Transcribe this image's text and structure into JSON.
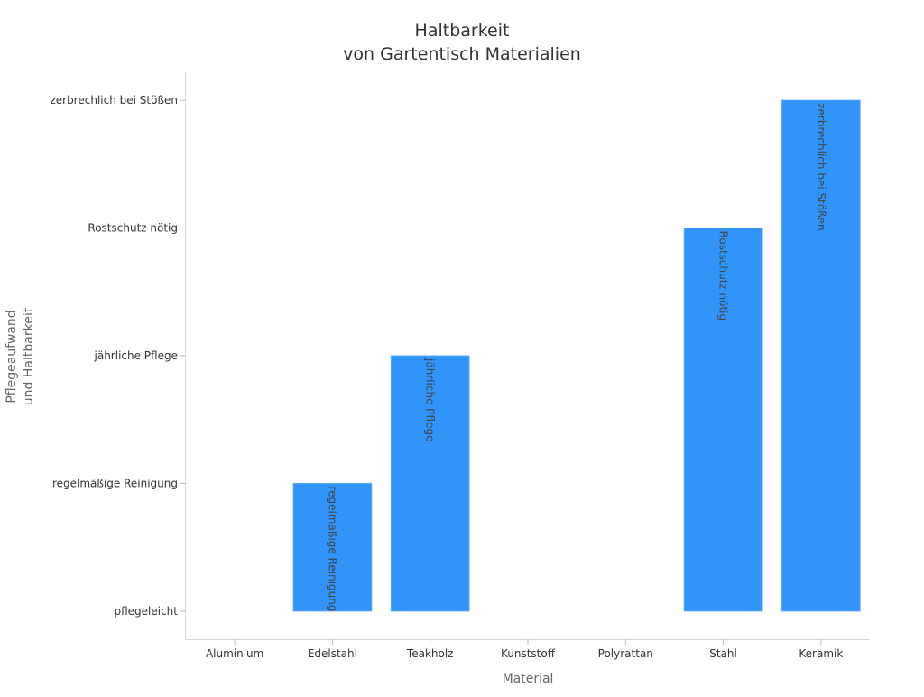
{
  "chart_data": {
    "type": "bar",
    "title": [
      "Haltbarkeit",
      "von Gartentisch Materialien"
    ],
    "xlabel": "Material",
    "ylabel": [
      "Pflegeaufwand",
      "und Haltbarkeit"
    ],
    "categories": [
      "Aluminium",
      "Edelstahl",
      "Teakholz",
      "Kunststoff",
      "Polyrattan",
      "Stahl",
      "Keramik"
    ],
    "y_levels": [
      "pflegeleicht",
      "regelmäßige Reinigung",
      "jährliche Pflege",
      "Rostschutz nötig",
      "zerbrechlich bei Stößen"
    ],
    "values": [
      0,
      1,
      2,
      0,
      0,
      3,
      4
    ],
    "data_labels": [
      "",
      "regelmäßige Reinigung",
      "jährliche Pflege",
      "",
      "",
      "Rostschutz nötig",
      "zerbrechlich bei Stößen"
    ],
    "ylim": [
      -0.22,
      4.22
    ],
    "grid": false,
    "legend": "none",
    "colors": {
      "bar": "#3094f8",
      "bar_stroke": "#5aa9f9"
    }
  }
}
